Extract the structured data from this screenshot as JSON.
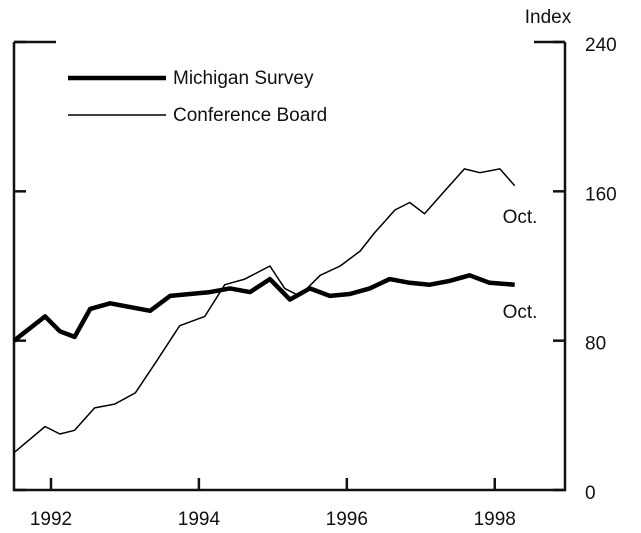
{
  "chart_data": {
    "type": "line",
    "y_axis_label": "Index",
    "xlim": [
      1992,
      1999.45
    ],
    "xticks": [
      {
        "value": 1992.5,
        "label": "1992"
      },
      {
        "value": 1994.5,
        "label": "1994"
      },
      {
        "value": 1996.5,
        "label": "1996"
      },
      {
        "value": 1998.5,
        "label": "1998"
      }
    ],
    "ylim": [
      0,
      240
    ],
    "yticks": [
      0,
      80,
      160,
      240
    ],
    "series": [
      {
        "name": "Michigan Survey",
        "color": "#000000",
        "width": "thick",
        "x": [
          1992.0,
          1992.42,
          1992.62,
          1992.82,
          1993.03,
          1993.3,
          1993.57,
          1993.84,
          1994.11,
          1994.38,
          1994.65,
          1994.92,
          1995.19,
          1995.46,
          1995.73,
          1996.0,
          1996.27,
          1996.54,
          1996.81,
          1997.08,
          1997.35,
          1997.62,
          1997.89,
          1998.16,
          1998.43,
          1998.77
        ],
        "values": [
          80,
          93,
          85,
          82,
          97,
          100,
          98,
          96,
          104,
          105,
          106,
          108,
          106,
          113,
          102,
          108,
          104,
          105,
          108,
          113,
          111,
          110,
          112,
          115,
          111,
          110
        ]
      },
      {
        "name": "Conference Board",
        "color": "#000000",
        "width": "thin",
        "x": [
          1992.0,
          1992.42,
          1992.62,
          1992.82,
          1993.09,
          1993.36,
          1993.64,
          1993.91,
          1994.24,
          1994.58,
          1994.85,
          1995.12,
          1995.46,
          1995.66,
          1995.86,
          1996.14,
          1996.41,
          1996.68,
          1996.88,
          1997.15,
          1997.35,
          1997.55,
          1997.82,
          1998.09,
          1998.3,
          1998.57,
          1998.77
        ],
        "values": [
          20,
          34,
          30,
          32,
          44,
          46,
          52,
          68,
          88,
          93,
          110,
          113,
          120,
          108,
          104,
          115,
          120,
          128,
          138,
          150,
          154,
          148,
          160,
          172,
          170,
          172,
          163
        ]
      }
    ],
    "annotations": [
      "Oct.",
      "Oct."
    ]
  }
}
